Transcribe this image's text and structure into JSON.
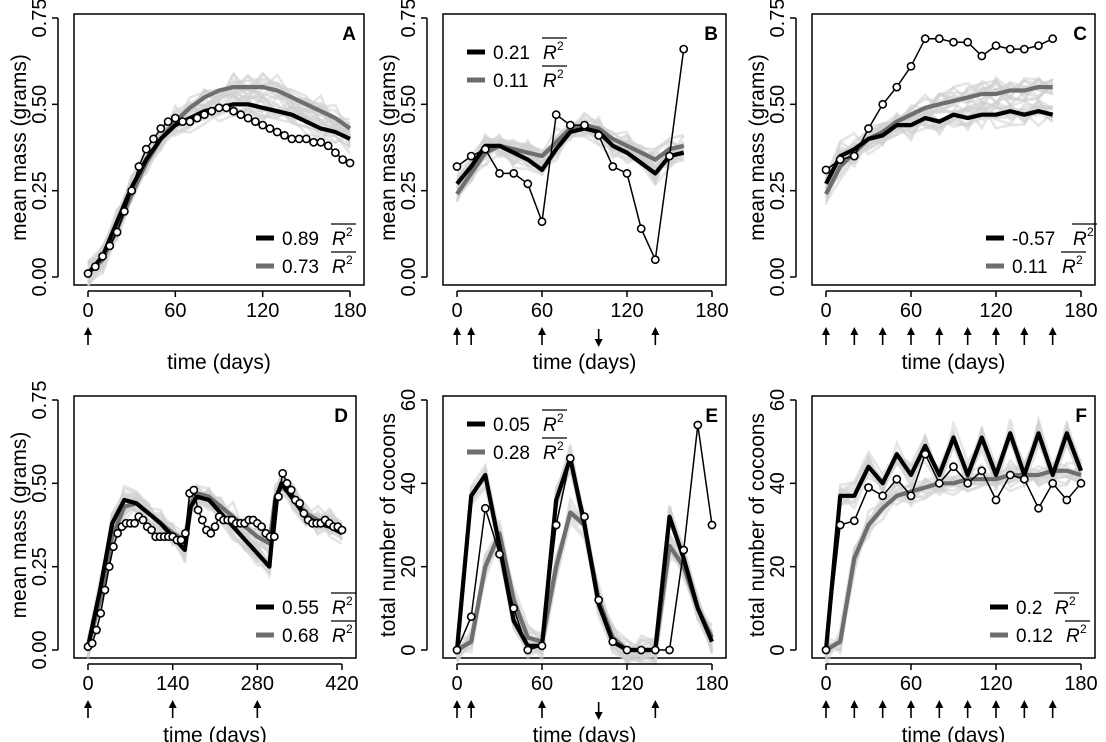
{
  "chart_data": [
    {
      "panel": "A",
      "type": "line",
      "xlabel": "time (days)",
      "ylabel": "mean mass (grams)",
      "xlim": [
        0,
        180
      ],
      "xticks": [
        0,
        60,
        120,
        180
      ],
      "ylim": [
        0,
        0.75
      ],
      "yticks": [
        "0.00",
        "0.25",
        "0.50",
        "0.75"
      ],
      "arrows": [
        {
          "x": 0,
          "dir": "up"
        }
      ],
      "model1": {
        "color": "#000000",
        "r2": "0.89",
        "x": [
          0,
          10,
          20,
          30,
          40,
          50,
          60,
          70,
          80,
          90,
          100,
          110,
          120,
          130,
          140,
          150,
          160,
          170,
          180
        ],
        "y": [
          0.01,
          0.06,
          0.16,
          0.26,
          0.34,
          0.4,
          0.44,
          0.46,
          0.48,
          0.49,
          0.5,
          0.5,
          0.49,
          0.48,
          0.47,
          0.45,
          0.43,
          0.42,
          0.4
        ]
      },
      "model2": {
        "color": "#6e6e6e",
        "r2": "0.73",
        "x": [
          0,
          10,
          20,
          30,
          40,
          50,
          60,
          70,
          80,
          90,
          100,
          110,
          120,
          130,
          140,
          150,
          160,
          170,
          180
        ],
        "y": [
          0.01,
          0.05,
          0.14,
          0.24,
          0.33,
          0.4,
          0.45,
          0.49,
          0.52,
          0.54,
          0.55,
          0.55,
          0.55,
          0.54,
          0.52,
          0.5,
          0.48,
          0.46,
          0.43
        ]
      },
      "observed": {
        "x": [
          0,
          5,
          10,
          15,
          20,
          25,
          30,
          35,
          40,
          45,
          50,
          55,
          60,
          65,
          70,
          75,
          80,
          85,
          90,
          95,
          100,
          105,
          110,
          115,
          120,
          125,
          130,
          135,
          140,
          145,
          150,
          155,
          160,
          165,
          170,
          175,
          180
        ],
        "y": [
          0.01,
          0.03,
          0.06,
          0.09,
          0.13,
          0.19,
          0.25,
          0.32,
          0.37,
          0.4,
          0.43,
          0.45,
          0.46,
          0.45,
          0.45,
          0.46,
          0.47,
          0.48,
          0.49,
          0.49,
          0.48,
          0.47,
          0.46,
          0.45,
          0.44,
          0.43,
          0.42,
          0.41,
          0.4,
          0.4,
          0.4,
          0.39,
          0.39,
          0.38,
          0.36,
          0.34,
          0.33
        ]
      }
    },
    {
      "panel": "B",
      "type": "line",
      "xlabel": "time (days)",
      "ylabel": "mean mass (grams)",
      "xlim": [
        0,
        180
      ],
      "xticks": [
        0,
        60,
        120,
        180
      ],
      "ylim": [
        0,
        0.75
      ],
      "yticks": [
        "0.00",
        "0.25",
        "0.50",
        "0.75"
      ],
      "arrows": [
        {
          "x": 0,
          "dir": "up"
        },
        {
          "x": 10,
          "dir": "up"
        },
        {
          "x": 60,
          "dir": "up"
        },
        {
          "x": 100,
          "dir": "down"
        },
        {
          "x": 140,
          "dir": "up"
        }
      ],
      "model1": {
        "color": "#000000",
        "r2": "0.21",
        "x": [
          0,
          10,
          20,
          30,
          40,
          50,
          60,
          70,
          80,
          90,
          100,
          110,
          120,
          130,
          140,
          150,
          160
        ],
        "y": [
          0.27,
          0.32,
          0.38,
          0.38,
          0.36,
          0.34,
          0.31,
          0.37,
          0.42,
          0.43,
          0.42,
          0.38,
          0.36,
          0.33,
          0.3,
          0.35,
          0.36
        ]
      },
      "model2": {
        "color": "#6e6e6e",
        "r2": "0.11",
        "x": [
          0,
          10,
          20,
          30,
          40,
          50,
          60,
          70,
          80,
          90,
          100,
          110,
          120,
          130,
          140,
          150,
          160
        ],
        "y": [
          0.24,
          0.3,
          0.36,
          0.38,
          0.37,
          0.36,
          0.35,
          0.39,
          0.43,
          0.44,
          0.43,
          0.4,
          0.38,
          0.36,
          0.34,
          0.37,
          0.38
        ]
      },
      "observed": {
        "x": [
          0,
          10,
          20,
          30,
          40,
          50,
          60,
          70,
          80,
          90,
          100,
          110,
          120,
          130,
          140,
          150,
          160
        ],
        "y": [
          0.32,
          0.35,
          0.37,
          0.3,
          0.3,
          0.27,
          0.16,
          0.47,
          0.44,
          0.44,
          0.41,
          0.32,
          0.3,
          0.14,
          0.05,
          0.35,
          0.66
        ]
      }
    },
    {
      "panel": "C",
      "type": "line",
      "xlabel": "time (days)",
      "ylabel": "mean mass (grams)",
      "xlim": [
        0,
        180
      ],
      "xticks": [
        0,
        60,
        120,
        180
      ],
      "ylim": [
        0,
        0.75
      ],
      "yticks": [
        "0.00",
        "0.25",
        "0.50",
        "0.75"
      ],
      "arrows": [
        {
          "x": 0,
          "dir": "up"
        },
        {
          "x": 20,
          "dir": "up"
        },
        {
          "x": 40,
          "dir": "up"
        },
        {
          "x": 60,
          "dir": "up"
        },
        {
          "x": 80,
          "dir": "up"
        },
        {
          "x": 100,
          "dir": "up"
        },
        {
          "x": 120,
          "dir": "up"
        },
        {
          "x": 140,
          "dir": "up"
        },
        {
          "x": 160,
          "dir": "up"
        }
      ],
      "model1": {
        "color": "#000000",
        "r2": "-0.57",
        "x": [
          0,
          10,
          20,
          30,
          40,
          50,
          60,
          70,
          80,
          90,
          100,
          110,
          120,
          130,
          140,
          150,
          160
        ],
        "y": [
          0.27,
          0.35,
          0.37,
          0.4,
          0.41,
          0.44,
          0.44,
          0.46,
          0.45,
          0.47,
          0.46,
          0.47,
          0.47,
          0.48,
          0.47,
          0.48,
          0.47
        ]
      },
      "model2": {
        "color": "#6e6e6e",
        "r2": "0.11",
        "x": [
          0,
          10,
          20,
          30,
          40,
          50,
          60,
          70,
          80,
          90,
          100,
          110,
          120,
          130,
          140,
          150,
          160
        ],
        "y": [
          0.24,
          0.32,
          0.36,
          0.4,
          0.42,
          0.45,
          0.47,
          0.49,
          0.5,
          0.51,
          0.52,
          0.53,
          0.53,
          0.54,
          0.54,
          0.55,
          0.55
        ]
      },
      "observed": {
        "x": [
          0,
          10,
          20,
          30,
          40,
          50,
          60,
          70,
          80,
          90,
          100,
          110,
          120,
          130,
          140,
          150,
          160
        ],
        "y": [
          0.31,
          0.34,
          0.35,
          0.43,
          0.5,
          0.55,
          0.61,
          0.69,
          0.69,
          0.68,
          0.68,
          0.64,
          0.67,
          0.66,
          0.66,
          0.67,
          0.69
        ]
      }
    },
    {
      "panel": "D",
      "type": "line",
      "xlabel": "time (days)",
      "ylabel": "mean mass (grams)",
      "xlim": [
        0,
        420
      ],
      "xticks": [
        0,
        140,
        280,
        420
      ],
      "ylim": [
        0,
        0.75
      ],
      "yticks": [
        "0.00",
        "0.25",
        "0.50",
        "0.75"
      ],
      "arrows": [
        {
          "x": 0,
          "dir": "up"
        },
        {
          "x": 140,
          "dir": "up"
        },
        {
          "x": 280,
          "dir": "up"
        }
      ],
      "model1": {
        "color": "#000000",
        "r2": "0.55",
        "x": [
          0,
          20,
          40,
          60,
          80,
          100,
          120,
          140,
          160,
          170,
          180,
          200,
          220,
          240,
          260,
          280,
          300,
          310,
          320,
          340,
          360,
          380,
          400,
          420
        ],
        "y": [
          0.01,
          0.18,
          0.38,
          0.45,
          0.44,
          0.41,
          0.38,
          0.34,
          0.3,
          0.43,
          0.46,
          0.45,
          0.41,
          0.37,
          0.33,
          0.29,
          0.25,
          0.45,
          0.5,
          0.45,
          0.4,
          0.38,
          0.37,
          0.35
        ]
      },
      "model2": {
        "color": "#6e6e6e",
        "r2": "0.68",
        "x": [
          0,
          20,
          40,
          60,
          80,
          100,
          120,
          140,
          160,
          170,
          180,
          200,
          220,
          240,
          260,
          280,
          300,
          310,
          320,
          340,
          360,
          380,
          400,
          420
        ],
        "y": [
          0.01,
          0.15,
          0.34,
          0.43,
          0.44,
          0.41,
          0.38,
          0.35,
          0.33,
          0.44,
          0.47,
          0.46,
          0.43,
          0.4,
          0.37,
          0.34,
          0.32,
          0.46,
          0.49,
          0.46,
          0.41,
          0.39,
          0.38,
          0.36
        ]
      },
      "observed": {
        "x": [
          0,
          7,
          14,
          21,
          28,
          35,
          42,
          49,
          56,
          63,
          70,
          77,
          84,
          91,
          98,
          105,
          112,
          119,
          126,
          133,
          140,
          147,
          154,
          161,
          168,
          175,
          182,
          189,
          196,
          203,
          210,
          217,
          224,
          231,
          238,
          245,
          252,
          259,
          266,
          273,
          280,
          287,
          294,
          301,
          308,
          315,
          322,
          329,
          336,
          343,
          350,
          357,
          364,
          371,
          378,
          385,
          392,
          399,
          406,
          413,
          420
        ],
        "y": [
          0.01,
          0.02,
          0.06,
          0.11,
          0.18,
          0.25,
          0.31,
          0.35,
          0.37,
          0.38,
          0.38,
          0.38,
          0.4,
          0.39,
          0.37,
          0.36,
          0.34,
          0.34,
          0.34,
          0.34,
          0.34,
          0.33,
          0.33,
          0.35,
          0.47,
          0.48,
          0.42,
          0.39,
          0.36,
          0.35,
          0.37,
          0.4,
          0.39,
          0.39,
          0.39,
          0.38,
          0.38,
          0.38,
          0.39,
          0.39,
          0.38,
          0.37,
          0.35,
          0.34,
          0.34,
          0.46,
          0.53,
          0.5,
          0.48,
          0.45,
          0.44,
          0.41,
          0.39,
          0.38,
          0.38,
          0.38,
          0.39,
          0.38,
          0.37,
          0.37,
          0.36
        ]
      }
    },
    {
      "panel": "E",
      "type": "line",
      "xlabel": "time (days)",
      "ylabel": "total number of cocoons",
      "xlim": [
        0,
        180
      ],
      "xticks": [
        0,
        60,
        120,
        180
      ],
      "ylim": [
        0,
        60
      ],
      "yticks": [
        "0",
        "20",
        "40",
        "60"
      ],
      "arrows": [
        {
          "x": 0,
          "dir": "up"
        },
        {
          "x": 10,
          "dir": "up"
        },
        {
          "x": 60,
          "dir": "up"
        },
        {
          "x": 100,
          "dir": "down"
        },
        {
          "x": 140,
          "dir": "up"
        }
      ],
      "model1": {
        "color": "#000000",
        "r2": "0.05",
        "x": [
          0,
          10,
          20,
          30,
          40,
          50,
          60,
          70,
          80,
          90,
          100,
          110,
          120,
          130,
          140,
          150,
          160,
          170,
          180
        ],
        "y": [
          0,
          37,
          42,
          25,
          7,
          1,
          1,
          36,
          46,
          30,
          11,
          2,
          0,
          0,
          0,
          32,
          22,
          10,
          2
        ]
      },
      "model2": {
        "color": "#6e6e6e",
        "r2": "0.28",
        "x": [
          0,
          10,
          20,
          30,
          40,
          50,
          60,
          70,
          80,
          90,
          100,
          110,
          120,
          130,
          140,
          150,
          160,
          170,
          180
        ],
        "y": [
          0,
          2,
          20,
          28,
          12,
          3,
          2,
          20,
          33,
          30,
          12,
          3,
          0,
          0,
          0,
          25,
          20,
          10,
          3
        ]
      },
      "observed": {
        "x": [
          0,
          10,
          20,
          30,
          40,
          50,
          60,
          70,
          80,
          90,
          100,
          110,
          120,
          130,
          140,
          150,
          160,
          170,
          180
        ],
        "y": [
          0,
          8,
          34,
          23,
          10,
          0,
          1,
          30,
          46,
          32,
          12,
          2,
          0,
          0,
          0,
          0,
          24,
          54,
          30
        ]
      }
    },
    {
      "panel": "F",
      "type": "line",
      "xlabel": "time (days)",
      "ylabel": "total number of cocoons",
      "xlim": [
        0,
        180
      ],
      "xticks": [
        0,
        60,
        120,
        180
      ],
      "ylim": [
        0,
        60
      ],
      "yticks": [
        "0",
        "20",
        "40",
        "60"
      ],
      "arrows": [
        {
          "x": 0,
          "dir": "up"
        },
        {
          "x": 20,
          "dir": "up"
        },
        {
          "x": 40,
          "dir": "up"
        },
        {
          "x": 60,
          "dir": "up"
        },
        {
          "x": 80,
          "dir": "up"
        },
        {
          "x": 100,
          "dir": "up"
        },
        {
          "x": 120,
          "dir": "up"
        },
        {
          "x": 140,
          "dir": "up"
        },
        {
          "x": 160,
          "dir": "up"
        }
      ],
      "model1": {
        "color": "#000000",
        "r2": "0.2",
        "x": [
          0,
          10,
          20,
          30,
          40,
          50,
          60,
          70,
          80,
          90,
          100,
          110,
          120,
          130,
          140,
          150,
          160,
          170,
          180
        ],
        "y": [
          0,
          37,
          37,
          44,
          40,
          47,
          42,
          49,
          42,
          51,
          42,
          51,
          42,
          52,
          42,
          52,
          42,
          52,
          43
        ]
      },
      "model2": {
        "color": "#6e6e6e",
        "r2": "0.12",
        "x": [
          0,
          10,
          20,
          30,
          40,
          50,
          60,
          70,
          80,
          90,
          100,
          110,
          120,
          130,
          140,
          150,
          160,
          170,
          180
        ],
        "y": [
          0,
          2,
          22,
          30,
          34,
          37,
          38,
          39,
          40,
          40,
          41,
          41,
          41,
          42,
          42,
          42,
          43,
          43,
          42
        ]
      },
      "observed": {
        "x": [
          0,
          10,
          20,
          30,
          40,
          50,
          60,
          70,
          80,
          90,
          100,
          110,
          120,
          130,
          140,
          150,
          160,
          170,
          180
        ],
        "y": [
          0,
          30,
          31,
          39,
          37,
          41,
          37,
          47,
          40,
          44,
          40,
          43,
          36,
          42,
          41,
          34,
          40,
          36,
          40
        ]
      }
    }
  ]
}
